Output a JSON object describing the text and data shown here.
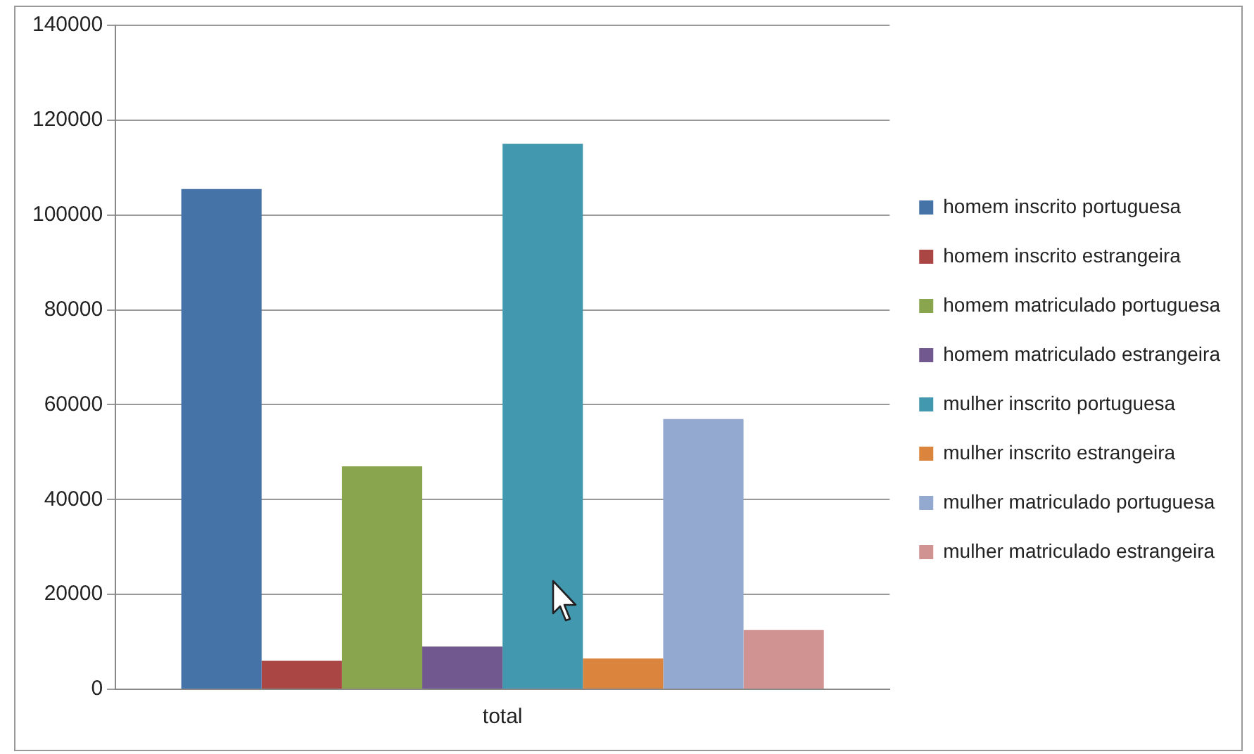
{
  "chart_data": {
    "type": "bar",
    "categories": [
      "total"
    ],
    "series": [
      {
        "name": "homem inscrito portuguesa",
        "color": "#4572a7",
        "values": [
          105500
        ]
      },
      {
        "name": "homem inscrito estrangeira",
        "color": "#aa4643",
        "values": [
          6000
        ]
      },
      {
        "name": "homem matriculado portuguesa",
        "color": "#89a54e",
        "values": [
          47000
        ]
      },
      {
        "name": "homem matriculado estrangeira",
        "color": "#71588f",
        "values": [
          9000
        ]
      },
      {
        "name": "mulher inscrito portuguesa",
        "color": "#4198af",
        "values": [
          115000
        ]
      },
      {
        "name": "mulher inscrito estrangeira",
        "color": "#db843d",
        "values": [
          6500
        ]
      },
      {
        "name": "mulher matriculado portuguesa",
        "color": "#93a9cf",
        "values": [
          57000
        ]
      },
      {
        "name": "mulher matriculado estrangeira",
        "color": "#d19392",
        "values": [
          12500
        ]
      }
    ],
    "ylim": [
      0,
      140000
    ],
    "yticks": [
      0,
      20000,
      40000,
      60000,
      80000,
      100000,
      120000,
      140000
    ],
    "grid": "y",
    "legend": "right"
  }
}
